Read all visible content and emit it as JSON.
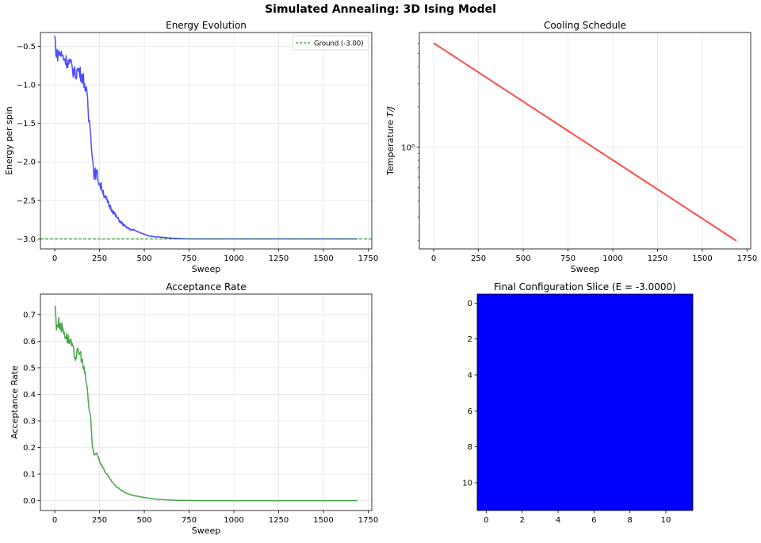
{
  "figure": {
    "suptitle": "Simulated Annealing: 3D Ising Model"
  },
  "chart_data": [
    {
      "id": "energy",
      "type": "line",
      "title": "Energy Evolution",
      "xlabel": "Sweep",
      "ylabel": "Energy per spin",
      "xlim": [
        -80,
        1770
      ],
      "ylim": [
        -3.13,
        -0.32
      ],
      "xticks": [
        0,
        250,
        500,
        750,
        1000,
        1250,
        1500,
        1750
      ],
      "yticks": [
        -3.0,
        -2.5,
        -2.0,
        -1.5,
        -1.0,
        -0.5
      ],
      "ytick_labels": [
        "−3.0",
        "−2.5",
        "−2.0",
        "−1.5",
        "−1.0",
        "−0.5"
      ],
      "grid": true,
      "legend_position": "upper right",
      "series": [
        {
          "name": "Energy",
          "color": "#0000ff",
          "alpha": 0.7,
          "x": [
            0,
            10,
            25,
            40,
            55,
            70,
            85,
            100,
            115,
            130,
            145,
            160,
            170,
            180,
            190,
            200,
            210,
            220,
            235,
            250,
            265,
            280,
            300,
            320,
            340,
            360,
            380,
            400,
            425,
            450,
            475,
            500,
            525,
            550,
            575,
            600,
            650,
            700,
            750,
            800,
            1000,
            1250,
            1500,
            1690
          ],
          "y": [
            -0.38,
            -0.62,
            -0.58,
            -0.62,
            -0.66,
            -0.7,
            -0.72,
            -0.8,
            -0.86,
            -0.8,
            -0.86,
            -0.92,
            -1.02,
            -1.15,
            -1.45,
            -1.55,
            -1.95,
            -2.15,
            -2.15,
            -2.28,
            -2.35,
            -2.45,
            -2.55,
            -2.62,
            -2.7,
            -2.76,
            -2.81,
            -2.85,
            -2.88,
            -2.89,
            -2.92,
            -2.94,
            -2.96,
            -2.97,
            -2.975,
            -2.98,
            -2.99,
            -2.995,
            -3.0,
            -3.0,
            -3.0,
            -3.0,
            -3.0,
            -3.0
          ]
        },
        {
          "name": "Ground (-3.00)",
          "color": "#008000",
          "linestyle": "dashed",
          "y_const": -3.0
        }
      ],
      "legend": [
        "Ground (-3.00)"
      ]
    },
    {
      "id": "cooling",
      "type": "line",
      "title": "Cooling Schedule",
      "xlabel": "Sweep",
      "ylabel": "Temperature T/J",
      "yscale": "log",
      "xlim": [
        -80,
        1770
      ],
      "ylim": [
        0.174,
        7.2
      ],
      "xticks": [
        0,
        250,
        500,
        750,
        1000,
        1250,
        1500,
        1750
      ],
      "yticks_major": [
        1
      ],
      "ytick_labels": [
        "10⁰"
      ],
      "yticks_minor": [
        0.2,
        0.3,
        0.4,
        0.5,
        0.6,
        0.7,
        0.8,
        0.9,
        2,
        3,
        4,
        5,
        6
      ],
      "grid": true,
      "series": [
        {
          "name": "Temperature",
          "color": "#ff0000",
          "alpha": 0.7,
          "x": [
            0,
            1690
          ],
          "y": [
            6.0,
            0.2
          ],
          "schedule": "geometric"
        }
      ]
    },
    {
      "id": "acceptance",
      "type": "line",
      "title": "Acceptance Rate",
      "xlabel": "Sweep",
      "ylabel": "Acceptance Rate",
      "xlim": [
        -80,
        1770
      ],
      "ylim": [
        -0.037,
        0.777
      ],
      "xticks": [
        0,
        250,
        500,
        750,
        1000,
        1250,
        1500,
        1750
      ],
      "yticks": [
        0.0,
        0.1,
        0.2,
        0.3,
        0.4,
        0.5,
        0.6,
        0.7
      ],
      "ytick_labels": [
        "0.0",
        "0.1",
        "0.2",
        "0.3",
        "0.4",
        "0.5",
        "0.6",
        "0.7"
      ],
      "grid": true,
      "series": [
        {
          "name": "Acceptance",
          "color": "#008000",
          "alpha": 0.7,
          "x": [
            0,
            10,
            25,
            40,
            55,
            70,
            85,
            100,
            115,
            130,
            145,
            160,
            170,
            180,
            190,
            200,
            210,
            220,
            235,
            250,
            265,
            280,
            300,
            320,
            340,
            360,
            380,
            400,
            425,
            450,
            475,
            500,
            525,
            550,
            575,
            600,
            650,
            700,
            750,
            800,
            1000,
            1250,
            1500,
            1690
          ],
          "y": [
            0.74,
            0.66,
            0.67,
            0.65,
            0.63,
            0.61,
            0.6,
            0.57,
            0.54,
            0.56,
            0.55,
            0.5,
            0.47,
            0.43,
            0.35,
            0.32,
            0.2,
            0.17,
            0.18,
            0.15,
            0.13,
            0.11,
            0.09,
            0.07,
            0.055,
            0.045,
            0.035,
            0.028,
            0.022,
            0.018,
            0.015,
            0.012,
            0.009,
            0.007,
            0.005,
            0.004,
            0.002,
            0.001,
            0.0005,
            0.0,
            0.0,
            0.0,
            0.0,
            0.0
          ]
        }
      ]
    },
    {
      "id": "config",
      "type": "heatmap",
      "title": "Final Configuration Slice (E = -3.0000)",
      "grid_size": [
        12,
        12
      ],
      "xticks": [
        0,
        2,
        4,
        6,
        8,
        10
      ],
      "yticks": [
        0,
        2,
        4,
        6,
        8,
        10
      ],
      "cmap_color": "#0000ff",
      "values": "all -1 (uniform)"
    }
  ]
}
